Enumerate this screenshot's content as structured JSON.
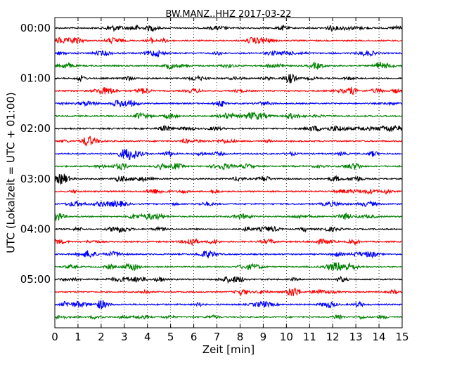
{
  "chart_data": {
    "type": "line",
    "title": "BW.MANZ..HHZ 2017-03-22",
    "xlabel": "Zeit  [min]",
    "ylabel": "UTC (Lokalzeit = UTC + 01:00)",
    "xlim": [
      0,
      15
    ],
    "x_ticks": [
      0,
      1,
      2,
      3,
      4,
      5,
      6,
      7,
      8,
      9,
      10,
      11,
      12,
      13,
      14,
      15
    ],
    "x_tick_labels": [
      "0",
      "1",
      "2",
      "3",
      "4",
      "5",
      "6",
      "7",
      "8",
      "9",
      "10",
      "11",
      "12",
      "13",
      "14",
      "15"
    ],
    "y_tick_labels": [
      "00:00",
      "01:00",
      "02:00",
      "03:00",
      "04:00",
      "05:00"
    ],
    "vertical_grid": "dotted",
    "trace_minutes": 15,
    "trace_colors": [
      "#000000",
      "#ff0000",
      "#0000ff",
      "#008000"
    ],
    "trace_starts": [
      "00:00",
      "00:15",
      "00:30",
      "00:45",
      "01:00",
      "01:15",
      "01:30",
      "01:45",
      "02:00",
      "02:15",
      "02:30",
      "02:45",
      "03:00",
      "03:15",
      "03:30",
      "03:45",
      "04:00",
      "04:15",
      "04:30",
      "04:45",
      "05:00",
      "05:15",
      "05:30",
      "05:45"
    ]
  }
}
